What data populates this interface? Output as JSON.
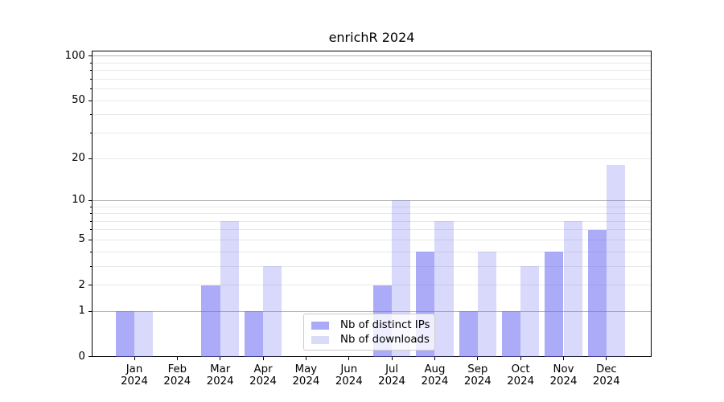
{
  "chart_data": {
    "type": "bar",
    "title": "enrichR 2024",
    "categories": [
      "Jan",
      "Feb",
      "Mar",
      "Apr",
      "May",
      "Jun",
      "Jul",
      "Aug",
      "Sep",
      "Oct",
      "Nov",
      "Dec"
    ],
    "x_tick_second_line": "2024",
    "series": [
      {
        "name": "Nb of distinct IPs",
        "values": [
          1,
          0,
          2,
          1,
          0,
          0,
          2,
          4,
          1,
          1,
          4,
          6
        ],
        "fill": "rgba(102,102,240,0.55)",
        "legend_swatch": "#abaaf7"
      },
      {
        "name": "Nb of downloads",
        "values": [
          1,
          0,
          7,
          3,
          0,
          0,
          10,
          7,
          4,
          3,
          7,
          18
        ],
        "fill": "rgba(102,102,240,0.25)",
        "legend_swatch": "#dadaf9"
      }
    ],
    "y_axis": {
      "scale": "log1p",
      "tick_labels": [
        "0",
        "1",
        "2",
        "5",
        "10",
        "20",
        "50",
        "100"
      ],
      "tick_values": [
        0,
        1,
        2,
        5,
        10,
        20,
        50,
        100
      ],
      "major_gridlines": [
        1,
        10,
        100
      ],
      "minor_gridlines": [
        2,
        3,
        4,
        5,
        6,
        7,
        8,
        9,
        20,
        30,
        40,
        50,
        60,
        70,
        80,
        90
      ],
      "ylim": [
        0,
        110
      ]
    },
    "grid": true,
    "legend_position": "lower center"
  },
  "colors": {
    "bar_dark": "#abaaf7",
    "bar_light": "#dadaf9",
    "major_grid": "#b3b3b3",
    "minor_grid": "#e9e9e9",
    "spine": "#000000"
  }
}
